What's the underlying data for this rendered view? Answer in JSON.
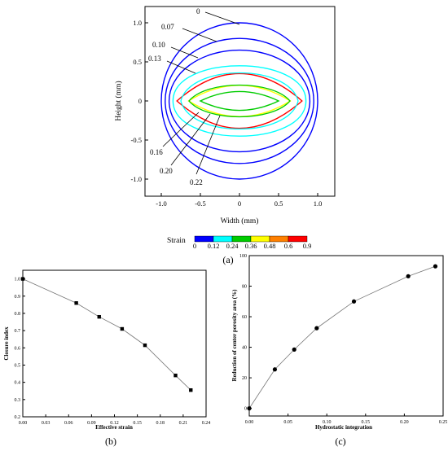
{
  "panel_labels": {
    "a": "(a)",
    "b": "(b)",
    "c": "(c)"
  },
  "colorbar": {
    "title": "Strain",
    "ticks": [
      "0",
      "0.12",
      "0.24",
      "0.36",
      "0.48",
      "0.6",
      "0.9"
    ],
    "colors": [
      "#0000ff",
      "#00ffff",
      "#00cc00",
      "#ffff00",
      "#ff8000",
      "#ff0000"
    ]
  },
  "chart_data": [
    {
      "type": "contour",
      "xlabel": "Width (mm)",
      "ylabel": "Height (mm)",
      "xlim": [
        -1.25,
        1.25
      ],
      "ylim": [
        -1.25,
        1.25
      ],
      "xticks": [
        "-1.0",
        "-0.5",
        "0",
        "0.5",
        "1.0"
      ],
      "yticks": [
        "1.0",
        "0.5",
        "0",
        "-0.5",
        "-1.0"
      ],
      "contours": [
        {
          "level": "0",
          "rx": 1.0,
          "ry": 1.0,
          "color": "#0000ff"
        },
        {
          "level": "0.07",
          "rx": 0.95,
          "ry": 0.8,
          "color": "#0000ff"
        },
        {
          "level": "0.10",
          "rx": 0.9,
          "ry": 0.65,
          "color": "#0000ff"
        },
        {
          "level": "0.13",
          "rx": 0.85,
          "ry": 0.5,
          "color": "#00ffff"
        },
        {
          "level": "0.16",
          "rx": 0.8,
          "ry": 0.35,
          "color": "#ff0000"
        },
        {
          "level": "0.20",
          "rx": 0.65,
          "ry": 0.2,
          "color": "#ffff00"
        },
        {
          "level": "0.22",
          "rx": 0.5,
          "ry": 0.12,
          "color": "#00cc00"
        }
      ]
    },
    {
      "type": "line",
      "xlabel": "Effective strain",
      "ylabel": "Closure index",
      "xlim": [
        0,
        0.24
      ],
      "ylim": [
        0.2,
        1.05
      ],
      "xticks": [
        "0.00",
        "0.03",
        "0.06",
        "0.09",
        "0.12",
        "0.15",
        "0.18",
        "0.21",
        "0.24"
      ],
      "yticks": [
        "1.0",
        "0.9",
        "0.8",
        "0.7",
        "0.6",
        "0.5",
        "0.4",
        "0.3",
        "0.2"
      ],
      "x": [
        0.0,
        0.07,
        0.1,
        0.13,
        0.16,
        0.2,
        0.22
      ],
      "y": [
        1.0,
        0.86,
        0.78,
        0.71,
        0.615,
        0.44,
        0.355
      ]
    },
    {
      "type": "line",
      "xlabel": "Hydrostatic integration",
      "ylabel": "Reduction of center porosity area (%)",
      "xlim": [
        0,
        0.25
      ],
      "ylim": [
        -5,
        100
      ],
      "xticks": [
        "0.00",
        "0.05",
        "0.10",
        "0.15",
        "0.20",
        "0.25"
      ],
      "yticks": [
        "100",
        "80",
        "60",
        "40",
        "20",
        "0"
      ],
      "x": [
        0.0,
        0.033,
        0.058,
        0.087,
        0.135,
        0.205,
        0.24
      ],
      "y": [
        0,
        25.5,
        38.5,
        52.5,
        70,
        86.5,
        93
      ]
    }
  ]
}
